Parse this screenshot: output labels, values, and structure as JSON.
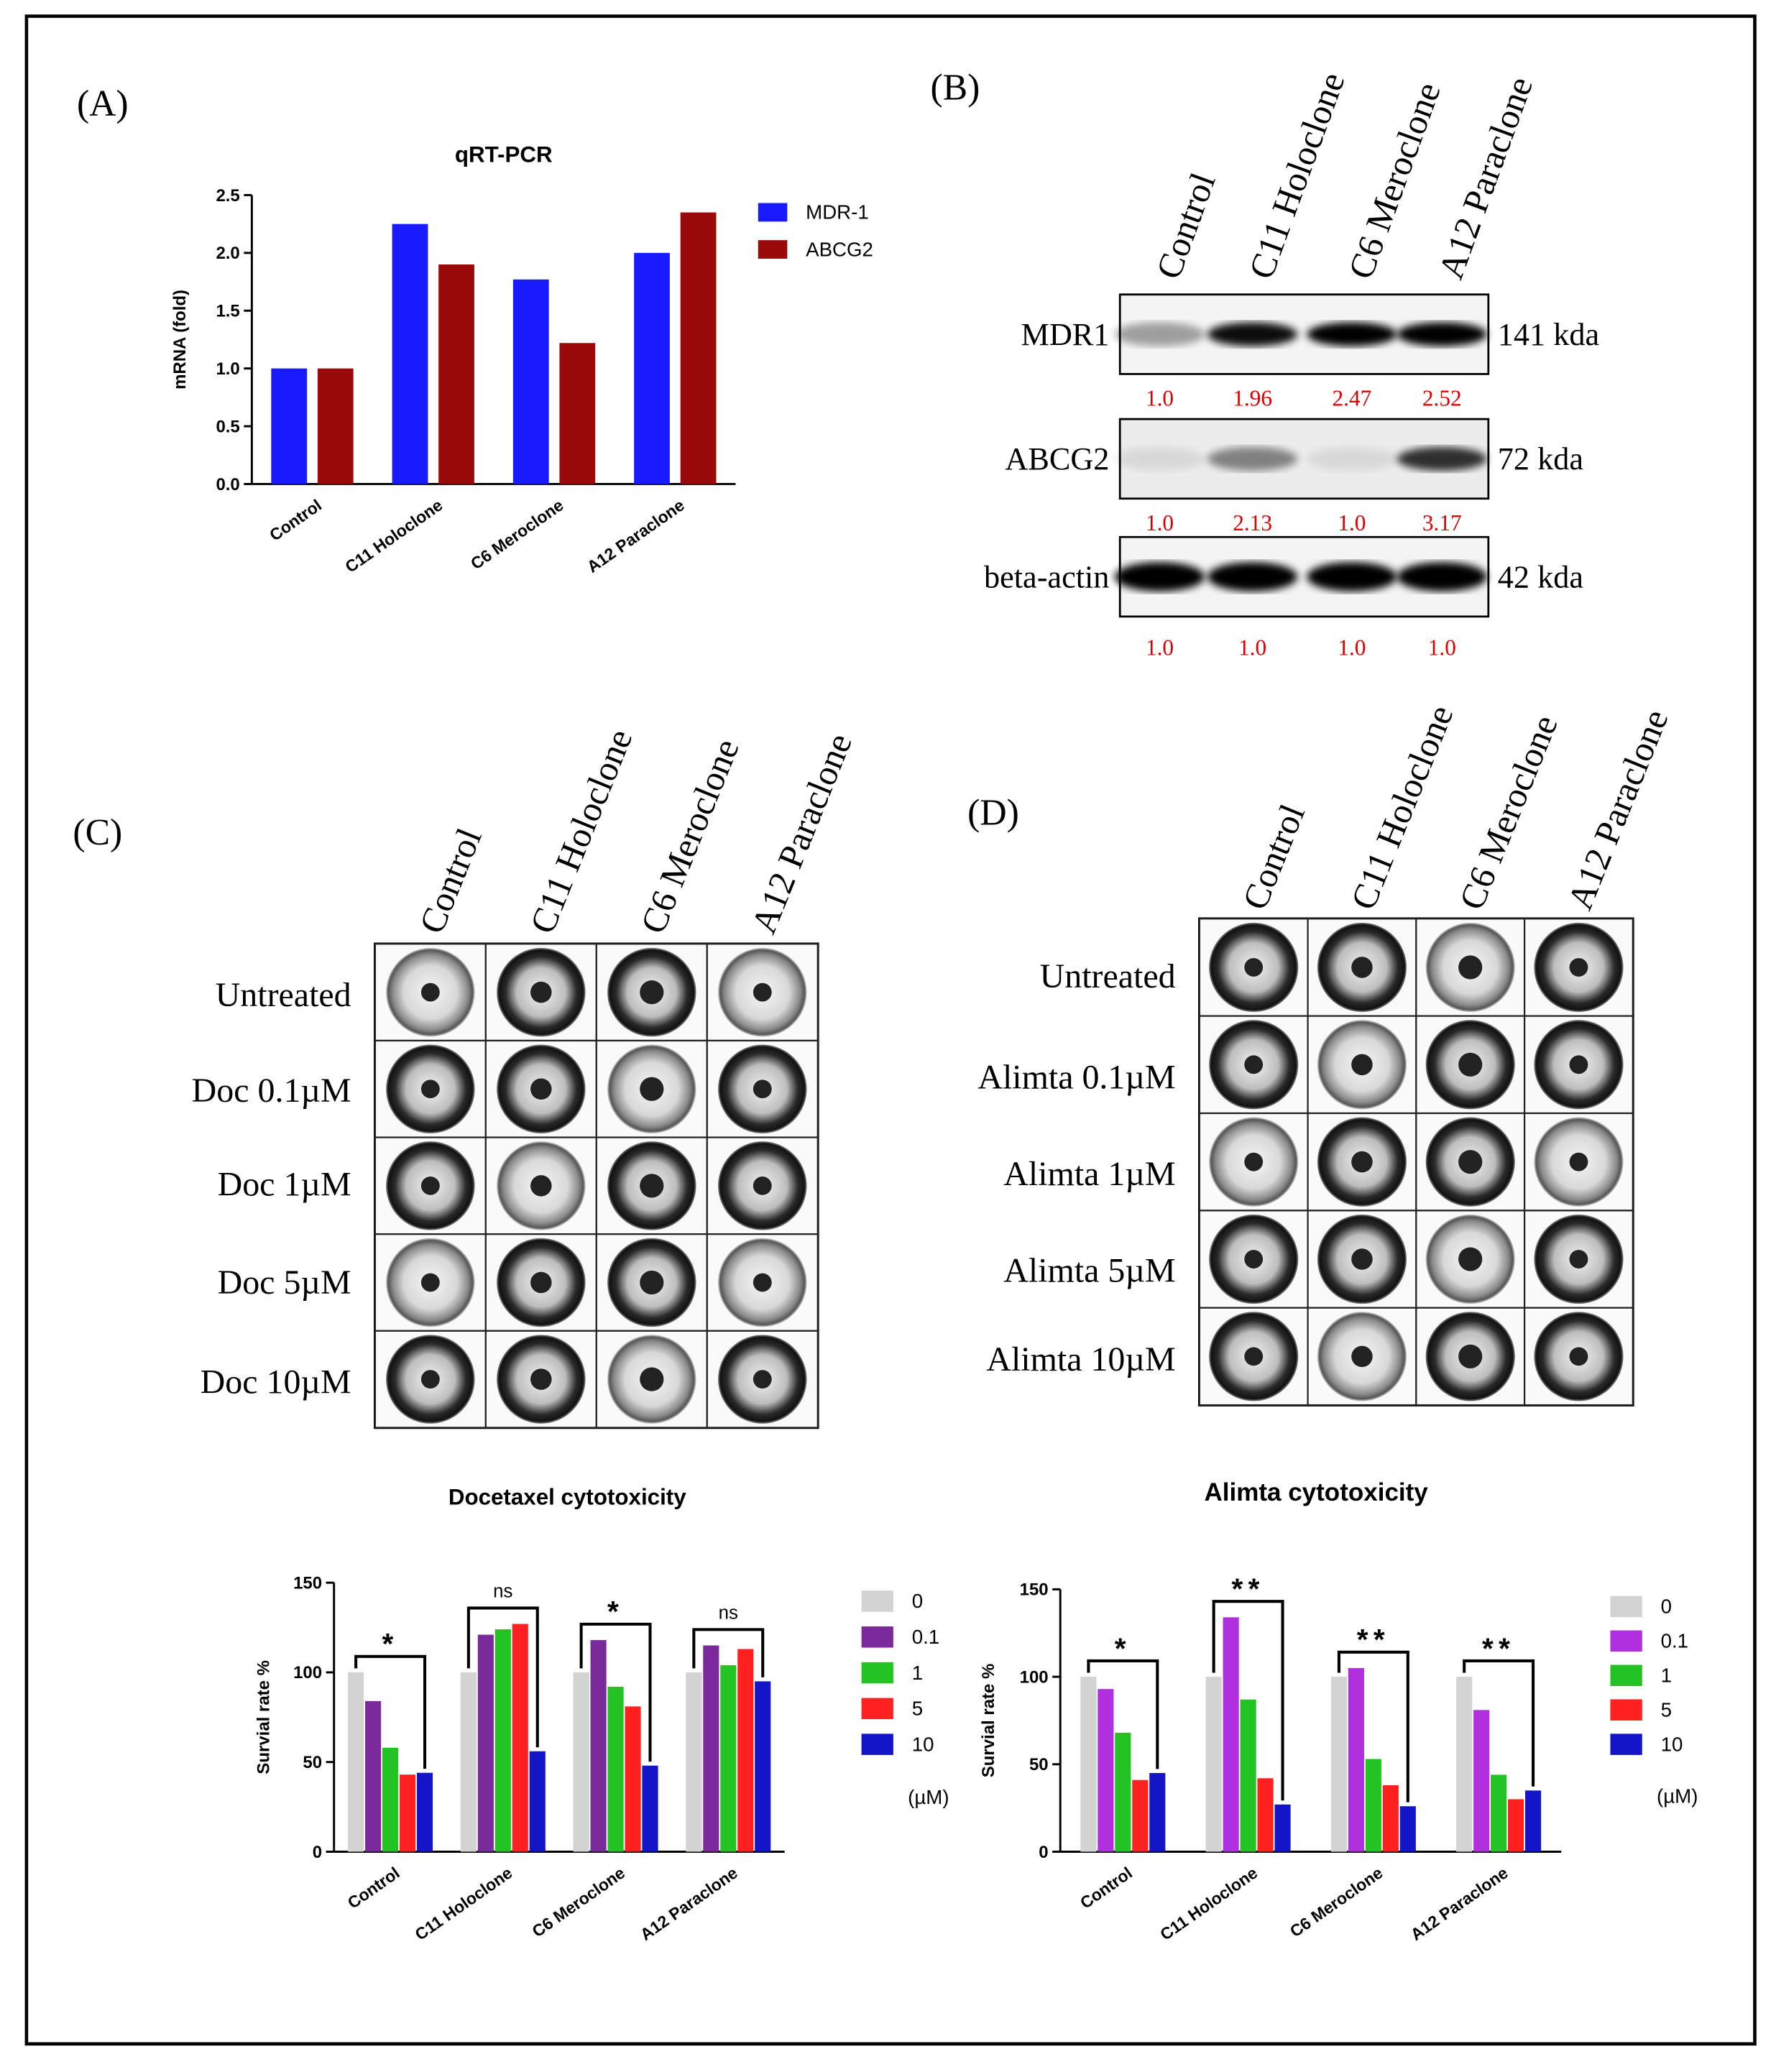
{
  "panel_labels": [
    "(A)",
    "(B)",
    "(C)",
    "(D)"
  ],
  "chart_data": [
    {
      "type": "bar",
      "title": "qRT-PCR",
      "y_label": "mRNA (fold)",
      "categories": [
        "Control",
        "C11 Holoclone",
        "C6 Meroclone",
        "A12 Paraclone"
      ],
      "series": [
        {
          "name": "MDR-1",
          "color": "#1a1aff",
          "values": [
            1.0,
            2.25,
            1.77,
            2.0
          ]
        },
        {
          "name": "ABCG2",
          "color": "#9b0a0a",
          "values": [
            1.0,
            1.9,
            1.22,
            2.35
          ]
        }
      ],
      "ylim": [
        0,
        2.5
      ],
      "yticks": [
        {
          "value": 0,
          "label": "0.0"
        },
        0.5,
        {
          "value": 1,
          "label": "1.0"
        },
        1.5,
        {
          "value": 2,
          "label": "2.0"
        },
        2.5
      ],
      "legend": "right"
    },
    {
      "type": "bar",
      "title": "Docetaxel cytotoxicity",
      "y_label": "Survial rate %",
      "categories": [
        "Control",
        "C11 Holoclone",
        "C6 Meroclone",
        "A12 Paraclone"
      ],
      "series": [
        {
          "name": "0",
          "color": "#d3d3d3",
          "values": [
            100,
            100,
            100,
            100
          ]
        },
        {
          "name": "0.1",
          "color": "#7b2a9c",
          "values": [
            84,
            121,
            118,
            115
          ]
        },
        {
          "name": "1",
          "color": "#22c322",
          "values": [
            58,
            124,
            92,
            104
          ]
        },
        {
          "name": "5",
          "color": "#ff2020",
          "values": [
            43,
            127,
            81,
            113
          ]
        },
        {
          "name": "10",
          "color": "#1414c8",
          "values": [
            44,
            56,
            48,
            95
          ]
        }
      ],
      "legend_title": "(µM)",
      "annotations": [
        "*",
        "ns",
        "*",
        "ns"
      ],
      "ylim": [
        0,
        150
      ],
      "yticks": [
        0,
        50,
        100,
        150
      ],
      "legend": "right"
    },
    {
      "type": "bar",
      "title": "Alimta cytotoxicity",
      "y_label": "Survial rate %",
      "categories": [
        "Control",
        "C11 Holoclone",
        "C6 Meroclone",
        "A12 Paraclone"
      ],
      "series": [
        {
          "name": "0",
          "color": "#d3d3d3",
          "values": [
            100,
            100,
            100,
            100
          ]
        },
        {
          "name": "0.1",
          "color": "#b030e0",
          "values": [
            93,
            134,
            105,
            81
          ]
        },
        {
          "name": "1",
          "color": "#22c322",
          "values": [
            68,
            87,
            53,
            44
          ]
        },
        {
          "name": "5",
          "color": "#ff2020",
          "values": [
            41,
            42,
            38,
            30
          ]
        },
        {
          "name": "10",
          "color": "#1414c8",
          "values": [
            45,
            27,
            26,
            35
          ]
        }
      ],
      "legend_title": "(µM)",
      "annotations": [
        "*",
        "**",
        "**",
        "**"
      ],
      "ylim": [
        0,
        150
      ],
      "yticks": [
        0,
        50,
        100,
        150
      ],
      "legend": "right"
    }
  ],
  "blot": {
    "lanes": [
      "Control",
      "C11 Holoclone",
      "C6 Meroclone",
      "A12 Paraclone"
    ],
    "rows": [
      {
        "name": "MDR1",
        "size": "141 kda",
        "values": [
          "1.0",
          "1.96",
          "2.47",
          "2.52"
        ]
      },
      {
        "name": "ABCG2",
        "size": "72 kda",
        "values": [
          "1.0",
          "2.13",
          "1.0",
          "3.17"
        ]
      },
      {
        "name": "beta-actin",
        "size": "42 kda",
        "values": [
          "1.0",
          "1.0",
          "1.0",
          "1.0"
        ]
      }
    ]
  },
  "spheroids": [
    {
      "columns": [
        "Control",
        "C11 Holoclone",
        "C6 Meroclone",
        "A12 Paraclone"
      ],
      "rows": [
        "Untreated",
        "Doc 0.1µM",
        "Doc 1µM",
        "Doc 5µM",
        "Doc 10µM"
      ]
    },
    {
      "columns": [
        "Control",
        "C11 Holoclone",
        "C6 Meroclone",
        "A12 Paraclone"
      ],
      "rows": [
        "Untreated",
        "Alimta 0.1µM",
        "Alimta 1µM",
        "Alimta 5µM",
        "Alimta 10µM"
      ]
    }
  ]
}
